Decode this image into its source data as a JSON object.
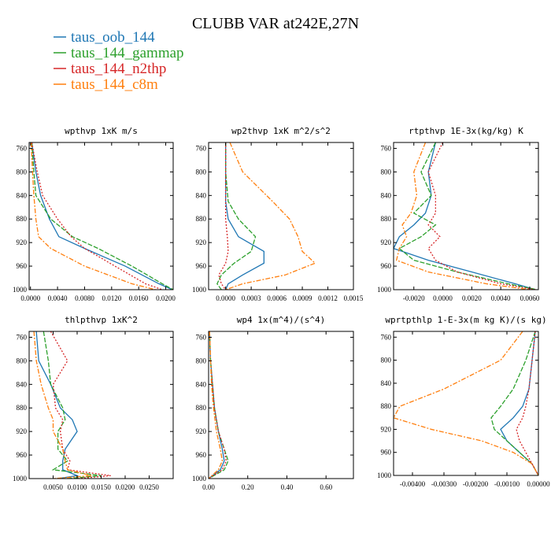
{
  "figure": {
    "title": "CLUBB VAR at242E,27N",
    "legend": [
      {
        "name": "taus_oob_144",
        "color": "#1f77b4"
      },
      {
        "name": "taus_144_gammap",
        "color": "#2ca02c"
      },
      {
        "name": "taus_144_n2thp",
        "color": "#d62728"
      },
      {
        "name": "taus_144_c8m",
        "color": "#ff7f0e"
      }
    ]
  },
  "chart_data": [
    {
      "type": "line",
      "title": "wpthvp  1xK m/s",
      "xlim": [
        -0.0002,
        0.0211
      ],
      "ylim": [
        1000,
        750
      ],
      "xticks": [
        0,
        0.004,
        0.008,
        0.012,
        0.016,
        0.02
      ],
      "xtick_labels": [
        "0.0000",
        "0.0040",
        "0.0080",
        "0.0120",
        "0.0160",
        "0.0200"
      ],
      "yticks": [
        760,
        800,
        840,
        880,
        920,
        960,
        1000
      ],
      "y": [
        750,
        800,
        840,
        880,
        910,
        930,
        960,
        990,
        1000
      ],
      "series": [
        {
          "name": "taus_oob_144",
          "x": [
            0.0002,
            0.0008,
            0.0015,
            0.0028,
            0.0042,
            0.008,
            0.014,
            0.019,
            0.021
          ]
        },
        {
          "name": "taus_144_gammap",
          "x": [
            0.0002,
            0.0005,
            0.0008,
            0.003,
            0.0062,
            0.01,
            0.015,
            0.0195,
            0.0211
          ]
        },
        {
          "name": "taus_144_n2thp",
          "x": [
            0.0002,
            0.001,
            0.0018,
            0.004,
            0.006,
            0.008,
            0.0125,
            0.017,
            0.0195
          ]
        },
        {
          "name": "taus_144_c8m",
          "x": [
            0.0001,
            0.0003,
            0.0005,
            0.0008,
            0.0012,
            0.003,
            0.008,
            0.015,
            0.0185
          ]
        }
      ]
    },
    {
      "type": "line",
      "title": "wp2thvp  1xK m^2/s^2",
      "xlim": [
        -0.0002,
        0.0015
      ],
      "ylim": [
        1000,
        750
      ],
      "xticks": [
        0,
        0.0003,
        0.0006,
        0.0009,
        0.0012,
        0.0015
      ],
      "xtick_labels": [
        "0.0000",
        "0.0003",
        "0.0006",
        "0.0009",
        "0.0012",
        "0.0015"
      ],
      "yticks": [
        760,
        800,
        840,
        880,
        920,
        960,
        1000
      ],
      "y": [
        750,
        800,
        850,
        880,
        910,
        935,
        955,
        975,
        990,
        1000
      ],
      "series": [
        {
          "name": "taus_oob_144",
          "x": [
            0.0,
            0.0,
            0.0,
            3e-05,
            0.00015,
            0.00045,
            0.00045,
            0.0002,
            3e-05,
            0.0
          ]
        },
        {
          "name": "taus_144_gammap",
          "x": [
            0.0,
            0.0,
            3e-05,
            0.00015,
            0.00035,
            0.0003,
            0.0001,
            -5e-05,
            -0.0001,
            -5e-05
          ]
        },
        {
          "name": "taus_144_n2thp",
          "x": [
            0.0,
            0.0,
            0.0,
            0.0,
            2e-05,
            3e-05,
            0.0,
            -8e-05,
            -5e-05,
            0.0
          ]
        },
        {
          "name": "taus_144_c8m",
          "x": [
            5e-05,
            0.0002,
            0.00055,
            0.00075,
            0.00085,
            0.0009,
            0.00105,
            0.0007,
            0.0002,
            0.0
          ]
        }
      ]
    },
    {
      "type": "line",
      "title": "rtpthvp  1E-3x(kg/kg) K",
      "xlim": [
        -0.0034,
        0.0066
      ],
      "ylim": [
        1000,
        750
      ],
      "xticks": [
        -0.002,
        0,
        0.002,
        0.004,
        0.006
      ],
      "xtick_labels": [
        "-0.0020",
        "0.0000",
        "0.0020",
        "0.0040",
        "0.0060"
      ],
      "yticks": [
        760,
        800,
        840,
        880,
        920,
        960,
        1000
      ],
      "y": [
        750,
        800,
        840,
        870,
        890,
        910,
        930,
        950,
        970,
        990,
        1000
      ],
      "series": [
        {
          "name": "taus_oob_144",
          "x": [
            -0.0005,
            -0.001,
            -0.0008,
            -0.0012,
            -0.002,
            -0.003,
            -0.0034,
            -0.001,
            0.002,
            0.005,
            0.0064
          ]
        },
        {
          "name": "taus_144_gammap",
          "x": [
            -0.0005,
            -0.0015,
            -0.0008,
            -0.002,
            -0.0005,
            -0.0015,
            -0.003,
            -0.002,
            0.001,
            0.0045,
            0.0065
          ]
        },
        {
          "name": "taus_144_n2thp",
          "x": [
            0.0,
            -0.001,
            -0.0005,
            -0.0005,
            -0.001,
            -0.0002,
            -0.001,
            -0.0005,
            0.001,
            0.004,
            0.0064
          ]
        },
        {
          "name": "taus_144_c8m",
          "x": [
            -0.0012,
            -0.002,
            -0.0018,
            -0.0022,
            -0.0028,
            -0.0025,
            -0.003,
            -0.0032,
            -0.001,
            0.003,
            0.006
          ]
        }
      ]
    },
    {
      "type": "line",
      "title": "thlpthvp  1xK^2",
      "xlim": [
        0.0,
        0.03
      ],
      "ylim": [
        1000,
        750
      ],
      "xticks": [
        0.005,
        0.01,
        0.015,
        0.02,
        0.025
      ],
      "xtick_labels": [
        "0.0050",
        "0.0100",
        "0.0150",
        "0.0200",
        "0.0250"
      ],
      "yticks": [
        760,
        800,
        840,
        880,
        920,
        960,
        1000
      ],
      "y": [
        750,
        800,
        840,
        880,
        900,
        920,
        950,
        970,
        985,
        995,
        1000
      ],
      "series": [
        {
          "name": "taus_oob_144",
          "x": [
            0.0015,
            0.002,
            0.0045,
            0.0065,
            0.009,
            0.01,
            0.0075,
            0.007,
            0.007,
            0.01,
            0.006
          ]
        },
        {
          "name": "taus_144_gammap",
          "x": [
            0.003,
            0.004,
            0.0045,
            0.007,
            0.0075,
            0.006,
            0.006,
            0.008,
            0.005,
            0.015,
            0.008
          ]
        },
        {
          "name": "taus_144_n2thp",
          "x": [
            0.0045,
            0.008,
            0.005,
            0.0055,
            0.007,
            0.0065,
            0.007,
            0.0085,
            0.008,
            0.017,
            0.01
          ]
        },
        {
          "name": "taus_144_c8m",
          "x": [
            0.001,
            0.0015,
            0.0025,
            0.004,
            0.005,
            0.005,
            0.007,
            0.0075,
            0.008,
            0.013,
            0.005
          ]
        }
      ]
    },
    {
      "type": "line",
      "title": "wp4  1x(m^4)/(s^4)",
      "xlim": [
        0.0,
        0.74
      ],
      "ylim": [
        1000,
        750
      ],
      "xticks": [
        0,
        0.2,
        0.4,
        0.6
      ],
      "xtick_labels": [
        "0.00",
        "0.20",
        "0.40",
        "0.60"
      ],
      "yticks": [
        760,
        800,
        840,
        880,
        920,
        960,
        1000
      ],
      "y": [
        750,
        800,
        840,
        880,
        920,
        950,
        970,
        985,
        1000
      ],
      "series": [
        {
          "name": "taus_oob_144",
          "x": [
            0.005,
            0.01,
            0.02,
            0.03,
            0.05,
            0.07,
            0.08,
            0.06,
            0.0
          ]
        },
        {
          "name": "taus_144_gammap",
          "x": [
            0.005,
            0.01,
            0.02,
            0.03,
            0.05,
            0.08,
            0.1,
            0.08,
            0.0
          ]
        },
        {
          "name": "taus_144_n2thp",
          "x": [
            0.005,
            0.01,
            0.02,
            0.03,
            0.05,
            0.08,
            0.09,
            0.07,
            0.0
          ]
        },
        {
          "name": "taus_144_c8m",
          "x": [
            0.005,
            0.01,
            0.015,
            0.025,
            0.04,
            0.06,
            0.07,
            0.05,
            0.0
          ]
        }
      ]
    },
    {
      "type": "line",
      "title": "wprtpthlp  1-E-3x(m kg K)/(s kg)",
      "xlim": [
        -0.0046,
        0.0
      ],
      "ylim": [
        1000,
        750
      ],
      "xticks": [
        -0.004,
        -0.003,
        -0.002,
        -0.001,
        0
      ],
      "xtick_labels": [
        "-0.00400",
        "-0.00300",
        "-0.00200",
        "-0.00100",
        "0.00000"
      ],
      "yticks": [
        760,
        800,
        840,
        880,
        920,
        960,
        1000
      ],
      "y": [
        750,
        800,
        850,
        880,
        900,
        920,
        940,
        960,
        980,
        1000
      ],
      "series": [
        {
          "name": "taus_oob_144",
          "x": [
            -0.0001,
            -0.0002,
            -0.0003,
            -0.0005,
            -0.0008,
            -0.0012,
            -0.001,
            -0.0006,
            -0.0002,
            0.0
          ]
        },
        {
          "name": "taus_144_gammap",
          "x": [
            -0.0001,
            -0.0004,
            -0.0008,
            -0.0012,
            -0.0015,
            -0.0014,
            -0.001,
            -0.0006,
            -0.0002,
            0.0
          ]
        },
        {
          "name": "taus_144_n2thp",
          "x": [
            -0.0001,
            -0.0002,
            -0.0003,
            -0.0004,
            -0.0005,
            -0.0007,
            -0.0006,
            -0.0004,
            -0.0002,
            0.0
          ]
        },
        {
          "name": "taus_144_c8m",
          "x": [
            -0.0005,
            -0.0012,
            -0.003,
            -0.0044,
            -0.0046,
            -0.0034,
            -0.0018,
            -0.0008,
            -0.0002,
            0.0
          ]
        }
      ]
    }
  ]
}
